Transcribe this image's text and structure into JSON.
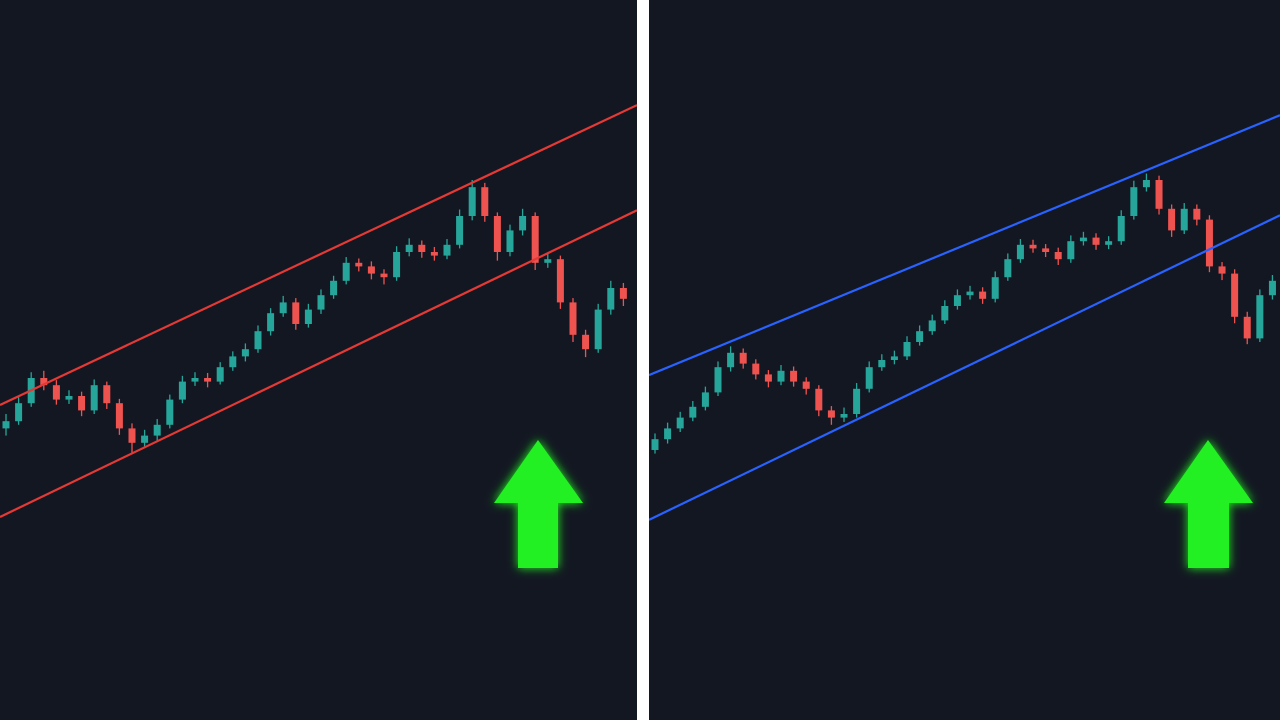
{
  "chart_data": [
    {
      "type": "candlestick",
      "ylim": [
        0,
        100
      ],
      "xlim": [
        -0.476,
        50.08
      ],
      "up_color": "#26a69a",
      "down_color": "#ef5350",
      "candles": [
        [
          40.5,
          42.5,
          39.5,
          41.5
        ],
        [
          41.5,
          44.8,
          41,
          44
        ],
        [
          44,
          48.3,
          43.5,
          47.5
        ],
        [
          47.5,
          48.5,
          45.8,
          46.5
        ],
        [
          46.5,
          47.2,
          43.8,
          44.5
        ],
        [
          44.5,
          45.8,
          43.9,
          45
        ],
        [
          45,
          45.6,
          42.2,
          43
        ],
        [
          43,
          47.3,
          42.5,
          46.5
        ],
        [
          46.5,
          47,
          43.2,
          44
        ],
        [
          44,
          44.6,
          39.6,
          40.5
        ],
        [
          40.5,
          41.2,
          37,
          38.5
        ],
        [
          38.5,
          40.3,
          37.8,
          39.5
        ],
        [
          39.5,
          41.8,
          38.8,
          41
        ],
        [
          41,
          45.2,
          40.5,
          44.5
        ],
        [
          44.5,
          47.8,
          44,
          47
        ],
        [
          47,
          48.3,
          46.4,
          47.5
        ],
        [
          47.5,
          48.2,
          46.2,
          47
        ],
        [
          47,
          49.7,
          46.6,
          49
        ],
        [
          49,
          51.2,
          48.5,
          50.5
        ],
        [
          50.5,
          52.3,
          49.8,
          51.5
        ],
        [
          51.5,
          54.8,
          51,
          54
        ],
        [
          54,
          57.2,
          53.4,
          56.5
        ],
        [
          56.5,
          58.9,
          56,
          58
        ],
        [
          58,
          58.6,
          54.2,
          55
        ],
        [
          55,
          57.8,
          54.5,
          57
        ],
        [
          57,
          59.8,
          56.4,
          59
        ],
        [
          59,
          61.7,
          58.5,
          61
        ],
        [
          61,
          64.3,
          60.5,
          63.5
        ],
        [
          63.5,
          64.1,
          62.3,
          63
        ],
        [
          63,
          63.7,
          61.2,
          62
        ],
        [
          62,
          62.6,
          60.5,
          61.5
        ],
        [
          61.5,
          65.8,
          61,
          65
        ],
        [
          65,
          66.9,
          64.4,
          66
        ],
        [
          66,
          66.6,
          64.2,
          65
        ],
        [
          65,
          65.7,
          63.8,
          64.5
        ],
        [
          64.5,
          66.8,
          64,
          66
        ],
        [
          66,
          70.9,
          65.5,
          70
        ],
        [
          70,
          75,
          69.4,
          74
        ],
        [
          74,
          74.6,
          69.2,
          70
        ],
        [
          70,
          70.5,
          63.8,
          65
        ],
        [
          65,
          68.8,
          64.4,
          68
        ],
        [
          68,
          71,
          67.3,
          70
        ],
        [
          70,
          70.5,
          62.5,
          63.5
        ],
        [
          63.5,
          64.9,
          62.8,
          64
        ],
        [
          64,
          64.5,
          57.1,
          58
        ],
        [
          58,
          58.6,
          52.5,
          53.5
        ],
        [
          53.5,
          54.2,
          50.4,
          51.5
        ],
        [
          51.5,
          57.8,
          51,
          57
        ],
        [
          57,
          61,
          56.3,
          60
        ],
        [
          60,
          60.7,
          57.5,
          58.5
        ]
      ],
      "lines": [
        {
          "color": "#e53935",
          "start": [
            -0.476,
            43.75
          ],
          "end": [
            50.08,
            85.4
          ]
        },
        {
          "color": "#e53935",
          "start": [
            -0.476,
            28.2
          ],
          "end": [
            50.08,
            70.8
          ]
        }
      ]
    },
    {
      "type": "candlestick",
      "ylim": [
        0,
        100
      ],
      "xlim": [
        -0.476,
        49.6
      ],
      "up_color": "#26a69a",
      "down_color": "#ef5350",
      "candles": [
        [
          37.5,
          39.8,
          37,
          39
        ],
        [
          39,
          41.3,
          38.4,
          40.5
        ],
        [
          40.5,
          42.8,
          40,
          42
        ],
        [
          42,
          44.3,
          41.5,
          43.5
        ],
        [
          43.5,
          46.3,
          43,
          45.5
        ],
        [
          45.5,
          49.8,
          45,
          49
        ],
        [
          49,
          51.9,
          48.4,
          51
        ],
        [
          51,
          51.6,
          48.8,
          49.5
        ],
        [
          49.5,
          50.1,
          47.3,
          48
        ],
        [
          48,
          48.6,
          46.2,
          47
        ],
        [
          47,
          49.3,
          46.5,
          48.5
        ],
        [
          48.5,
          49.1,
          46.3,
          47
        ],
        [
          47,
          47.6,
          45.2,
          46
        ],
        [
          46,
          46.5,
          42.2,
          43
        ],
        [
          43,
          43.6,
          41,
          42
        ],
        [
          42,
          43.4,
          41.4,
          42.5
        ],
        [
          42.5,
          46.8,
          42,
          46
        ],
        [
          46,
          49.8,
          45.5,
          49
        ],
        [
          49,
          50.8,
          48.5,
          50
        ],
        [
          50,
          51.3,
          49.4,
          50.5
        ],
        [
          50.5,
          53.3,
          50,
          52.5
        ],
        [
          52.5,
          54.8,
          52,
          54
        ],
        [
          54,
          56.3,
          53.5,
          55.5
        ],
        [
          55.5,
          58.3,
          55,
          57.5
        ],
        [
          57.5,
          59.8,
          57,
          59
        ],
        [
          59,
          60.3,
          58.4,
          59.5
        ],
        [
          59.5,
          60.1,
          57.8,
          58.5
        ],
        [
          58.5,
          62.3,
          58,
          61.5
        ],
        [
          61.5,
          64.8,
          61,
          64
        ],
        [
          64,
          66.8,
          63.5,
          66
        ],
        [
          66,
          66.7,
          64.9,
          65.5
        ],
        [
          65.5,
          66.1,
          64.3,
          65
        ],
        [
          65,
          65.6,
          63.2,
          64
        ],
        [
          64,
          67.3,
          63.5,
          66.5
        ],
        [
          66.5,
          67.8,
          65.9,
          67
        ],
        [
          67,
          67.6,
          65.3,
          66
        ],
        [
          66,
          67.2,
          65.4,
          66.5
        ],
        [
          66.5,
          70.8,
          66,
          70
        ],
        [
          70,
          74.9,
          69.5,
          74
        ],
        [
          74,
          75.9,
          73.4,
          75
        ],
        [
          75,
          75.6,
          70.2,
          71
        ],
        [
          71,
          71.6,
          67.1,
          68
        ],
        [
          68,
          71.8,
          67.5,
          71
        ],
        [
          71,
          71.6,
          68.7,
          69.5
        ],
        [
          69.5,
          70.1,
          62.2,
          63
        ],
        [
          63,
          63.6,
          61.1,
          62
        ],
        [
          62,
          62.6,
          55.1,
          56
        ],
        [
          56,
          56.7,
          52.2,
          53
        ],
        [
          53,
          59.8,
          52.5,
          59
        ],
        [
          59,
          61.8,
          58.4,
          61
        ]
      ],
      "lines": [
        {
          "color": "#2962ff",
          "start": [
            -0.476,
            47.9
          ],
          "end": [
            49.6,
            84.0
          ]
        },
        {
          "color": "#2962ff",
          "start": [
            -0.476,
            27.8
          ],
          "end": [
            49.6,
            70.1
          ]
        }
      ]
    }
  ]
}
